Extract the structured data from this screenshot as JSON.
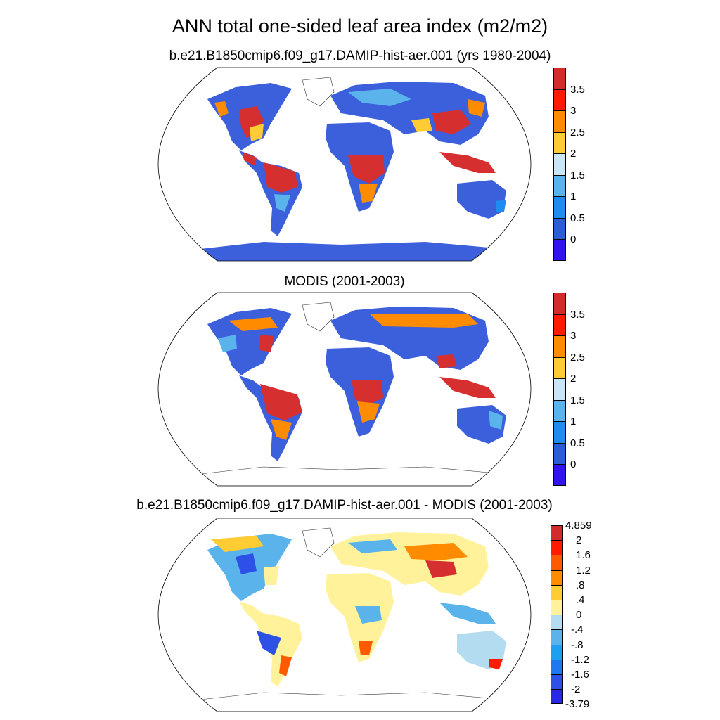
{
  "title": "ANN total one-sided leaf area index (m2/m2)",
  "colors": {
    "land_low": "#3C5FDC",
    "land_mid": "#7AB0F0",
    "land_high": "#D62F2F",
    "diff_neutral": "#FFF2A0"
  },
  "panels": [
    {
      "subtitle": "b.e21.B1850cmip6.f09_g17.DAMIP-hist-aer.001 (yrs 1980-2004)",
      "colorbar": {
        "labels": [
          "3.5",
          "3",
          "2.5",
          "2",
          "1.5",
          "1",
          "0.5",
          "0"
        ],
        "colors": [
          "#D32A2A",
          "#FF1A00",
          "#FF8C00",
          "#FFCC33",
          "#C8E6F5",
          "#5AB4EB",
          "#1E8CF0",
          "#2D5CD8",
          "#3214F0"
        ]
      }
    },
    {
      "subtitle": "MODIS (2001-2003)",
      "colorbar": {
        "labels": [
          "3.5",
          "3",
          "2.5",
          "2",
          "1.5",
          "1",
          "0.5",
          "0"
        ],
        "colors": [
          "#D32A2A",
          "#FF1A00",
          "#FF8C00",
          "#FFCC33",
          "#C8E6F5",
          "#5AB4EB",
          "#1E8CF0",
          "#2D5CD8",
          "#3214F0"
        ]
      }
    },
    {
      "subtitle": "b.e21.B1850cmip6.f09_g17.DAMIP-hist-aer.001 - MODIS (2001-2003)",
      "colorbar": {
        "labels": [
          "4.859",
          "2",
          "1.6",
          "1.2",
          ".8",
          ".4",
          "0",
          "-.4",
          "-.8",
          "-1.2",
          "-1.6",
          "-2",
          "-3.79"
        ],
        "colors": [
          "#D32A2A",
          "#FF1A00",
          "#FF5A00",
          "#FF8C00",
          "#FFCC33",
          "#FFF29A",
          "#B4DCF0",
          "#5AB4EB",
          "#1EA0F0",
          "#1E78F0",
          "#2D50E6",
          "#2828E6"
        ]
      }
    }
  ]
}
